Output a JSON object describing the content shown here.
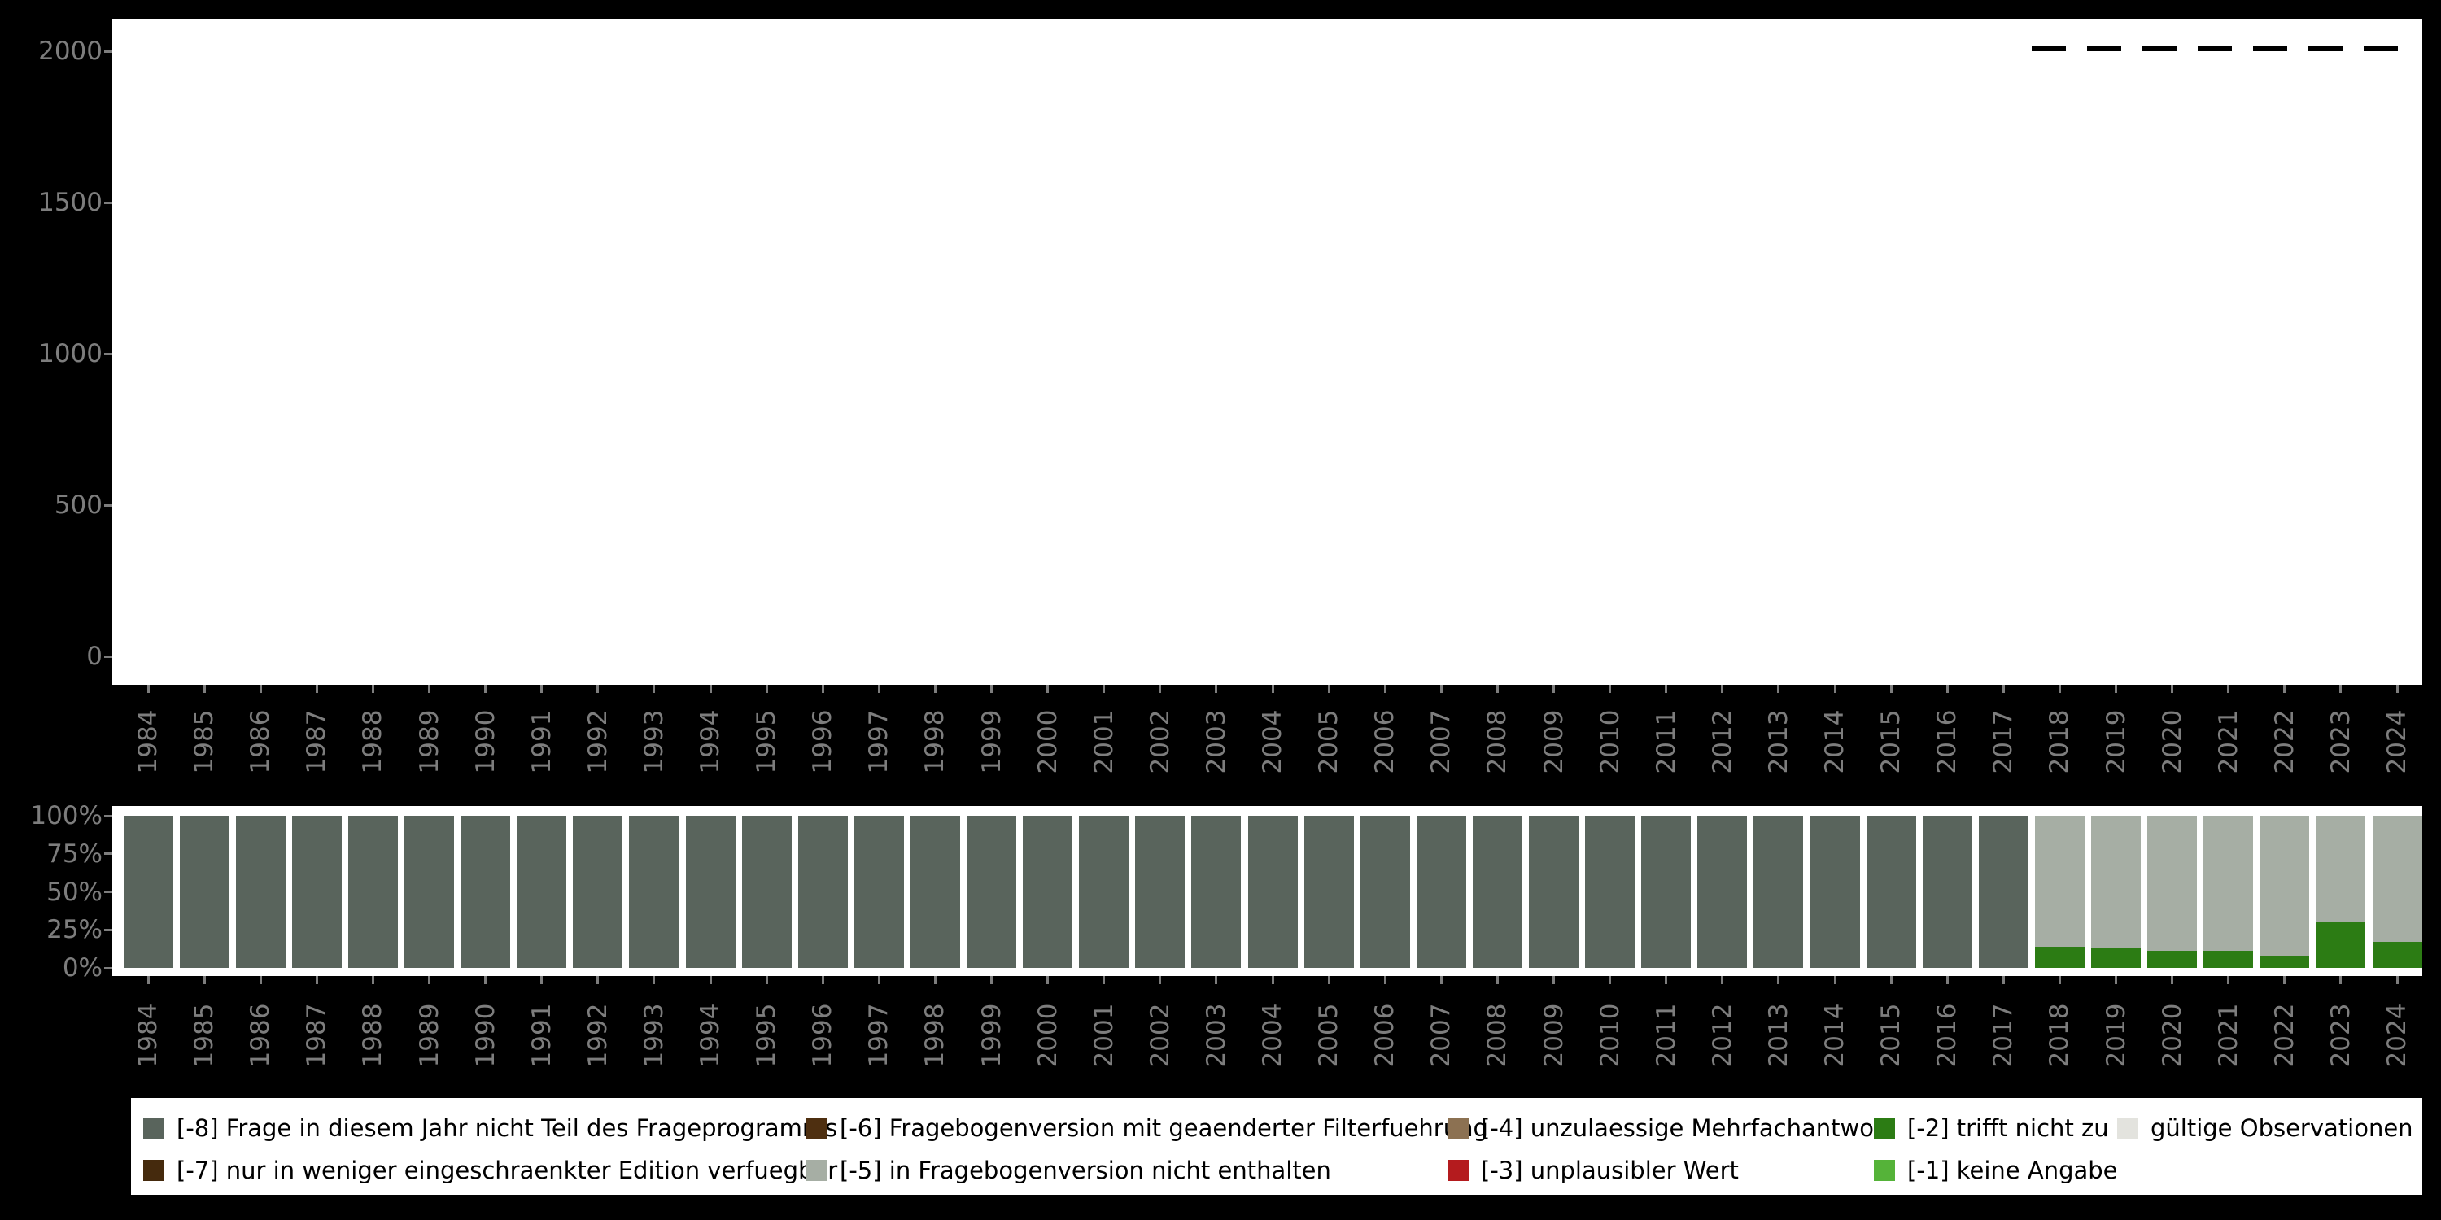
{
  "figure": {
    "description": "Missing-data overview chart with observation counts per survey year (top) and percentage composition of missing codes per year (bottom)"
  },
  "colors": {
    "-8": "#59645c",
    "-7": "#452a0d",
    "-6": "#4e2f10",
    "-5": "#a6aea4",
    "-4": "#8c7152",
    "-3": "#b41b1e",
    "-2": "#2c7c14",
    "-1": "#55b339",
    "valid": "#e3e3de",
    "background": "#000000",
    "panel": "#ffffff",
    "axis_text": "#7d7d7d",
    "line": "#000000"
  },
  "years": [
    1984,
    1985,
    1986,
    1987,
    1988,
    1989,
    1990,
    1991,
    1992,
    1993,
    1994,
    1995,
    1996,
    1997,
    1998,
    1999,
    2000,
    2001,
    2002,
    2003,
    2004,
    2005,
    2006,
    2007,
    2008,
    2009,
    2010,
    2011,
    2012,
    2013,
    2014,
    2015,
    2016,
    2017,
    2018,
    2019,
    2020,
    2021,
    2022,
    2023,
    2024
  ],
  "chart_data": [
    {
      "type": "line",
      "name": "observations-per-year",
      "style": "dashed",
      "line_color": "#000000",
      "x": [
        2018,
        2019,
        2020,
        2021,
        2022,
        2023,
        2024
      ],
      "values": [
        2010,
        2010,
        2010,
        2010,
        2010,
        2010,
        2010
      ],
      "ylim": [
        0,
        2000
      ],
      "yticks": [
        0,
        500,
        1000,
        1500,
        2000
      ],
      "x_categories": [
        1984,
        1985,
        1986,
        1987,
        1988,
        1989,
        1990,
        1991,
        1992,
        1993,
        1994,
        1995,
        1996,
        1997,
        1998,
        1999,
        2000,
        2001,
        2002,
        2003,
        2004,
        2005,
        2006,
        2007,
        2008,
        2009,
        2010,
        2011,
        2012,
        2013,
        2014,
        2015,
        2016,
        2017,
        2018,
        2019,
        2020,
        2021,
        2022,
        2023,
        2024
      ],
      "grid": false,
      "legend_position": "none"
    },
    {
      "type": "bar",
      "name": "missing-shares-per-year",
      "stacked": true,
      "unit": "percent",
      "categories": [
        1984,
        1985,
        1986,
        1987,
        1988,
        1989,
        1990,
        1991,
        1992,
        1993,
        1994,
        1995,
        1996,
        1997,
        1998,
        1999,
        2000,
        2001,
        2002,
        2003,
        2004,
        2005,
        2006,
        2007,
        2008,
        2009,
        2010,
        2011,
        2012,
        2013,
        2014,
        2015,
        2016,
        2017,
        2018,
        2019,
        2020,
        2021,
        2022,
        2023,
        2024
      ],
      "ytick_labels": [
        "0%",
        "25%",
        "50%",
        "75%",
        "100%"
      ],
      "yticks_percent": [
        0,
        25,
        50,
        75,
        100
      ],
      "series": [
        {
          "name": "[-2] trifft nicht zu",
          "color": "-2",
          "values": [
            0,
            0,
            0,
            0,
            0,
            0,
            0,
            0,
            0,
            0,
            0,
            0,
            0,
            0,
            0,
            0,
            0,
            0,
            0,
            0,
            0,
            0,
            0,
            0,
            0,
            0,
            0,
            0,
            0,
            0,
            0,
            0,
            0,
            0,
            14,
            13,
            11,
            11,
            8,
            30,
            17
          ]
        },
        {
          "name": "[-8] Frage in diesem Jahr nicht Teil des Frageprogramms",
          "color": "-8",
          "values": [
            100,
            100,
            100,
            100,
            100,
            100,
            100,
            100,
            100,
            100,
            100,
            100,
            100,
            100,
            100,
            100,
            100,
            100,
            100,
            100,
            100,
            100,
            100,
            100,
            100,
            100,
            100,
            100,
            100,
            100,
            100,
            100,
            100,
            100,
            0,
            0,
            0,
            0,
            0,
            0,
            0
          ]
        },
        {
          "name": "[-5] in Fragebogenversion nicht enthalten",
          "color": "-5",
          "values": [
            0,
            0,
            0,
            0,
            0,
            0,
            0,
            0,
            0,
            0,
            0,
            0,
            0,
            0,
            0,
            0,
            0,
            0,
            0,
            0,
            0,
            0,
            0,
            0,
            0,
            0,
            0,
            0,
            0,
            0,
            0,
            0,
            0,
            0,
            86,
            87,
            89,
            89,
            92,
            70,
            83
          ]
        }
      ]
    }
  ],
  "legend": {
    "items": [
      {
        "label": "[-8] Frage in diesem Jahr nicht Teil des Frageprogramms",
        "color": "-8",
        "row": 0,
        "col": 0
      },
      {
        "label": "[-7] nur in weniger eingeschraenkter Edition verfuegbar",
        "color": "-7",
        "row": 1,
        "col": 0
      },
      {
        "label": "[-6] Fragebogenversion mit geaenderter Filterfuehrung",
        "color": "-6",
        "row": 0,
        "col": 1
      },
      {
        "label": "[-5] in Fragebogenversion nicht enthalten",
        "color": "-5",
        "row": 1,
        "col": 1
      },
      {
        "label": "[-4] unzulaessige Mehrfachantwort",
        "color": "-4",
        "row": 0,
        "col": 2
      },
      {
        "label": "[-3] unplausibler Wert",
        "color": "-3",
        "row": 1,
        "col": 2
      },
      {
        "label": "[-2] trifft nicht zu",
        "color": "-2",
        "row": 0,
        "col": 3
      },
      {
        "label": "[-1] keine Angabe",
        "color": "-1",
        "row": 1,
        "col": 3
      },
      {
        "label": "gültige Observationen",
        "color": "valid",
        "row": 0,
        "col": 4
      }
    ]
  }
}
